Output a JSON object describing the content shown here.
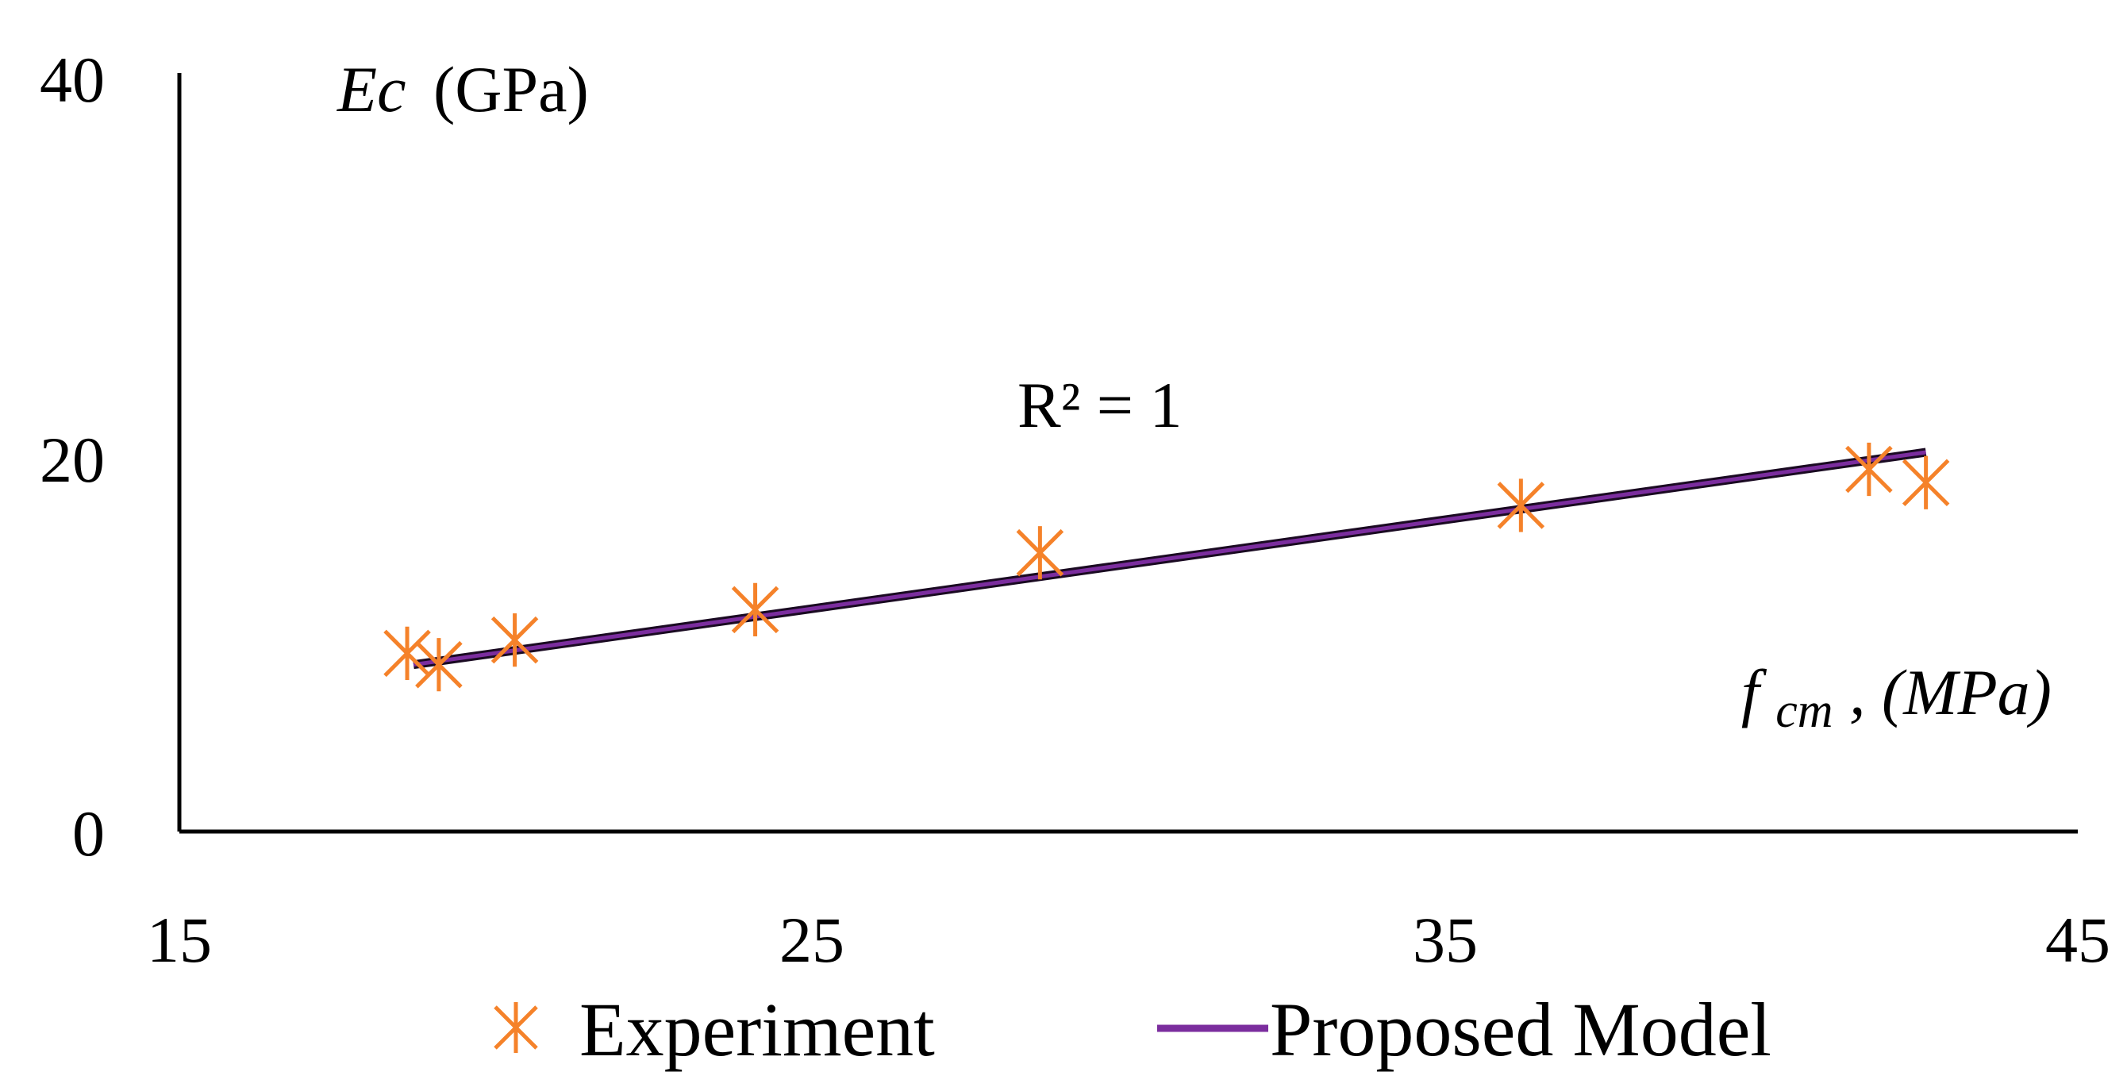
{
  "chart_data": {
    "type": "scatter",
    "xlim": [
      15,
      45
    ],
    "ylim": [
      0,
      40
    ],
    "x_ticks": [
      "15",
      "25",
      "35",
      "45"
    ],
    "y_ticks": [
      "0",
      "20",
      "40"
    ],
    "ylabel_var": "Ec",
    "ylabel_unit": "(GPa)",
    "xlabel_var": "f",
    "xlabel_sub": "cm",
    "xlabel_unit": ", (MPa)",
    "annotation": "R² = 1",
    "grid": false,
    "legend_position": "bottom",
    "series": [
      {
        "name": "Experiment",
        "kind": "points",
        "marker": "asterisk",
        "color": "#F5822A",
        "x": [
          18.6,
          19.1,
          20.3,
          24.1,
          28.6,
          36.2,
          41.7,
          42.6
        ],
        "y": [
          9.4,
          8.8,
          10.1,
          11.7,
          14.7,
          17.2,
          19.1,
          18.4
        ]
      },
      {
        "name": "Proposed Model",
        "kind": "line",
        "color": "#7B2D9E",
        "x": [
          18.7,
          42.6
        ],
        "y": [
          8.8,
          20.0
        ]
      }
    ]
  }
}
